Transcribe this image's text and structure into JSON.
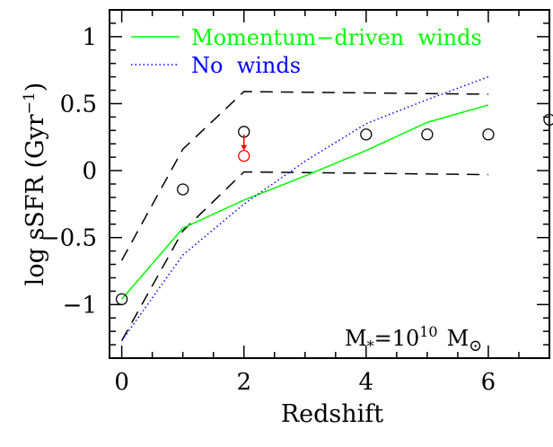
{
  "chart_data": {
    "type": "line",
    "xlabel": "Redshift",
    "ylabel": "log sSFR (Gyr",
    "ylabel_sup": "−1",
    "ylabel_close": ")",
    "xlim": [
      -0.2,
      7.0
    ],
    "ylim": [
      -1.4,
      1.2
    ],
    "x_ticks": [
      0,
      2,
      4,
      6
    ],
    "x_tick_labels": [
      "0",
      "2",
      "4",
      "6"
    ],
    "y_ticks": [
      -1,
      -0.5,
      0,
      0.5,
      1
    ],
    "y_tick_labels": [
      "−1",
      "−0.5",
      "0",
      "0.5",
      "1"
    ],
    "grid": false,
    "legend_position": "top-left",
    "series": [
      {
        "name": "Momentum−driven  winds",
        "color": "#00ff00",
        "style": "solid",
        "x": [
          0,
          1,
          2,
          3,
          4,
          5,
          6
        ],
        "y": [
          -0.96,
          -0.43,
          -0.22,
          -0.04,
          0.15,
          0.36,
          0.49
        ]
      },
      {
        "name": "No  winds",
        "color": "#0000ff",
        "style": "dotted",
        "x": [
          0,
          1,
          2,
          3,
          4,
          5,
          6
        ],
        "y": [
          -1.27,
          -0.63,
          -0.25,
          0.07,
          0.35,
          0.53,
          0.7
        ]
      }
    ],
    "envelope": {
      "color": "#000000",
      "style": "dashed",
      "upper": {
        "x": [
          0,
          1,
          2,
          6
        ],
        "y": [
          -0.67,
          0.16,
          0.59,
          0.57
        ]
      },
      "lower": {
        "x": [
          0,
          1,
          2,
          6
        ],
        "y": [
          -1.27,
          -0.45,
          -0.01,
          -0.03
        ]
      }
    },
    "observations": [
      {
        "x": 0,
        "y": -0.96
      },
      {
        "x": 1,
        "y": -0.14
      },
      {
        "x": 2,
        "y": 0.29
      },
      {
        "x": 4,
        "y": 0.27
      },
      {
        "x": 5,
        "y": 0.27
      },
      {
        "x": 6,
        "y": 0.27
      },
      {
        "x": 7,
        "y": 0.38
      }
    ],
    "observation_color": "#000000",
    "corrected_point": {
      "x": 2,
      "y_from": 0.27,
      "y": 0.11,
      "color": "#ff0000"
    },
    "annotation": {
      "main": "M",
      "sub": "*",
      "eq": "=10",
      "sup": "10",
      "unit": "M",
      "unit_sub": "⊙"
    }
  }
}
